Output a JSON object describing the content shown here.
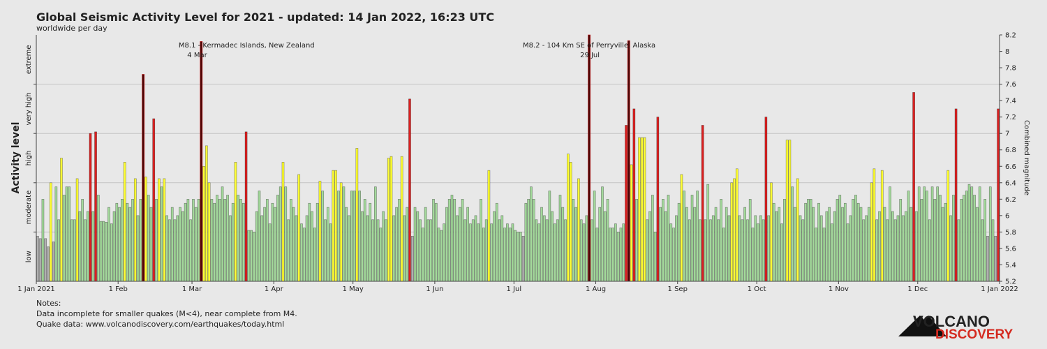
{
  "chart_data": {
    "type": "bar",
    "title": "Global Seismic Activity Level for 2021 - updated: 14 Jan 2022, 16:23 UTC",
    "subtitle": "worldwide per day",
    "y_label": "Activity level",
    "y2_label": "Combined magnitude",
    "value_axis_side": "right",
    "ylim": [
      5.2,
      8.2
    ],
    "yticks": [
      5.2,
      5.4,
      5.6,
      5.8,
      6,
      6.2,
      6.4,
      6.6,
      6.8,
      7,
      7.2,
      7.4,
      7.6,
      7.8,
      8,
      8.2
    ],
    "levels": [
      {
        "value": 5.5,
        "label": "low"
      },
      {
        "value": 6.1,
        "label": "moderate"
      },
      {
        "value": 6.7,
        "label": "high"
      },
      {
        "value": 7.3,
        "label": "very high"
      },
      {
        "value": 7.9,
        "label": "extreme"
      }
    ],
    "level_ticks": [
      5.8,
      6.4,
      7.0,
      7.6
    ],
    "grid": true,
    "xlim": [
      0,
      365
    ],
    "xticks": [
      {
        "value": 0,
        "label": "1 Jan 2021"
      },
      {
        "value": 31,
        "label": "1 Feb"
      },
      {
        "value": 59,
        "label": "1 Mar"
      },
      {
        "value": 90,
        "label": "1 Apr"
      },
      {
        "value": 120,
        "label": "1 May"
      },
      {
        "value": 151,
        "label": "1 Jun"
      },
      {
        "value": 181,
        "label": "1 Jul"
      },
      {
        "value": 212,
        "label": "1 Aug"
      },
      {
        "value": 243,
        "label": "1 Sep"
      },
      {
        "value": 273,
        "label": "1 Oct"
      },
      {
        "value": 304,
        "label": "1 Nov"
      },
      {
        "value": 334,
        "label": "1 Dec"
      },
      {
        "value": 365,
        "label": "1 Jan 2022"
      }
    ],
    "annotations": [
      {
        "text": "M8.1 - Kermadec Islands, New Zealand",
        "date": "4 Mar",
        "x": 62
      },
      {
        "text": "M8.2 - 104 Km SE of Perryville, Alaska",
        "date": "29 Jul",
        "x": 209
      }
    ],
    "values": [
      5.75,
      5.72,
      6.2,
      5.72,
      5.62,
      6.4,
      5.68,
      6.35,
      5.95,
      6.7,
      6.25,
      6.35,
      6.35,
      5.95,
      5.95,
      6.45,
      6.05,
      6.2,
      5.95,
      6.05,
      7.0,
      6.05,
      7.02,
      6.25,
      5.93,
      5.93,
      5.92,
      6.1,
      5.9,
      6.05,
      6.15,
      6.1,
      6.2,
      6.65,
      6.15,
      6.1,
      6.2,
      6.45,
      6.0,
      6.2,
      7.72,
      6.47,
      6.25,
      6.1,
      7.18,
      6.2,
      6.45,
      6.35,
      6.45,
      6.0,
      5.95,
      6.1,
      5.95,
      6.0,
      6.1,
      6.05,
      6.15,
      6.2,
      5.95,
      6.2,
      6.1,
      6.2,
      8.12,
      6.6,
      6.85,
      6.4,
      6.2,
      6.15,
      6.25,
      6.2,
      6.35,
      6.2,
      6.25,
      6.0,
      6.15,
      6.65,
      6.25,
      6.2,
      6.15,
      7.02,
      5.82,
      5.82,
      5.8,
      6.05,
      6.3,
      6.0,
      6.1,
      6.2,
      5.9,
      6.15,
      6.1,
      6.25,
      6.35,
      6.65,
      6.35,
      5.95,
      6.2,
      6.1,
      6.0,
      6.5,
      5.9,
      5.85,
      6.0,
      6.15,
      6.05,
      5.85,
      6.15,
      6.42,
      6.3,
      5.95,
      6.1,
      5.9,
      6.55,
      6.55,
      6.3,
      6.4,
      6.35,
      6.1,
      6.0,
      6.3,
      6.3,
      6.82,
      6.3,
      6.05,
      6.2,
      6.0,
      6.15,
      5.95,
      6.35,
      5.95,
      5.85,
      6.05,
      5.95,
      6.7,
      6.72,
      6.0,
      6.1,
      6.2,
      6.72,
      6.0,
      6.1,
      7.42,
      5.75,
      6.1,
      6.05,
      5.95,
      5.85,
      6.1,
      5.95,
      5.95,
      6.2,
      6.15,
      5.85,
      5.82,
      5.9,
      6.1,
      6.2,
      6.25,
      6.2,
      6.0,
      6.1,
      6.2,
      5.95,
      6.1,
      5.9,
      5.95,
      6.0,
      5.9,
      6.2,
      5.85,
      5.95,
      6.55,
      5.9,
      6.05,
      6.15,
      5.95,
      6.0,
      5.85,
      5.9,
      5.85,
      5.9,
      5.82,
      5.8,
      5.8,
      5.75,
      6.15,
      6.2,
      6.35,
      6.2,
      5.95,
      5.9,
      6.1,
      6.0,
      5.95,
      6.3,
      6.05,
      5.9,
      5.95,
      6.25,
      6.1,
      5.95,
      6.75,
      6.65,
      6.2,
      6.1,
      6.45,
      5.95,
      5.9,
      6.0,
      8.2,
      5.95,
      6.3,
      5.85,
      6.1,
      6.35,
      6.05,
      6.2,
      5.85,
      5.85,
      5.9,
      5.8,
      5.85,
      5.9,
      7.1,
      8.13,
      6.62,
      7.3,
      6.2,
      6.95,
      6.95,
      6.95,
      5.95,
      6.05,
      6.25,
      5.8,
      7.2,
      6.1,
      6.2,
      6.05,
      6.25,
      5.9,
      5.85,
      6.0,
      6.15,
      6.5,
      6.3,
      6.1,
      5.95,
      6.25,
      6.1,
      6.3,
      5.95,
      7.1,
      5.95,
      6.38,
      5.95,
      6.0,
      6.1,
      5.95,
      6.2,
      5.85,
      6.1,
      6.0,
      6.4,
      6.45,
      6.57,
      6.0,
      5.95,
      6.1,
      5.95,
      6.2,
      5.85,
      6.0,
      5.9,
      6.0,
      5.95,
      7.2,
      6.0,
      6.4,
      6.15,
      6.05,
      6.1,
      5.9,
      6.2,
      6.92,
      6.92,
      6.35,
      6.1,
      6.45,
      6.0,
      5.95,
      6.15,
      6.2,
      6.2,
      6.1,
      5.85,
      6.15,
      6.0,
      5.85,
      6.05,
      6.1,
      5.9,
      6.05,
      6.2,
      6.25,
      6.1,
      6.15,
      5.9,
      6.0,
      6.2,
      6.25,
      6.15,
      6.1,
      5.95,
      6.0,
      6.1,
      6.4,
      6.57,
      5.95,
      6.05,
      6.55,
      6.1,
      5.95,
      6.35,
      6.05,
      5.95,
      6.0,
      6.2,
      6.0,
      6.05,
      6.3,
      6.1,
      7.5,
      6.05,
      6.35,
      6.2,
      6.35,
      6.3,
      5.95,
      6.35,
      6.2,
      6.35,
      6.25,
      6.1,
      6.15,
      6.55,
      6.0,
      6.25,
      7.3,
      5.95,
      6.2,
      6.25,
      6.3,
      6.38,
      6.35,
      6.25,
      6.1,
      6.35,
      5.95,
      6.2,
      5.75,
      6.35,
      5.95,
      5.75,
      7.3
    ],
    "colors": [
      "#b0b0b0",
      "#b0b0b0",
      "#a3d99b",
      "#b0b0b0",
      "#b0b0b0",
      "#ffff33",
      "#b0b0b0",
      "#a3d99b",
      "#a3d99b",
      "#ffff33",
      "#a3d99b",
      "#a3d99b",
      "#a3d99b",
      "#a3d99b",
      "#a3d99b",
      "#ffff33",
      "#a3d99b",
      "#a3d99b",
      "#a3d99b",
      "#a3d99b",
      "#dd2020",
      "#a3d99b",
      "#dd2020",
      "#a3d99b",
      "#a3d99b",
      "#a3d99b",
      "#a3d99b",
      "#a3d99b",
      "#a3d99b",
      "#a3d99b",
      "#a3d99b",
      "#a3d99b",
      "#a3d99b",
      "#ffff33",
      "#a3d99b",
      "#a3d99b",
      "#a3d99b",
      "#ffff33",
      "#a3d99b",
      "#a3d99b",
      "#4a0606",
      "#ffff33",
      "#a3d99b",
      "#a3d99b",
      "#dd2020",
      "#a3d99b",
      "#ffff33",
      "#a3d99b",
      "#ffff33",
      "#a3d99b",
      "#a3d99b",
      "#a3d99b",
      "#a3d99b",
      "#a3d99b",
      "#a3d99b",
      "#a3d99b",
      "#a3d99b",
      "#a3d99b",
      "#a3d99b",
      "#a3d99b",
      "#a3d99b",
      "#a3d99b",
      "#4a0606",
      "#ffff33",
      "#ffff33",
      "#ffff33",
      "#a3d99b",
      "#a3d99b",
      "#a3d99b",
      "#a3d99b",
      "#a3d99b",
      "#a3d99b",
      "#a3d99b",
      "#a3d99b",
      "#a3d99b",
      "#ffff33",
      "#a3d99b",
      "#a3d99b",
      "#a3d99b",
      "#dd2020",
      "#a3d99b",
      "#a3d99b",
      "#a3d99b",
      "#a3d99b",
      "#a3d99b",
      "#a3d99b",
      "#a3d99b",
      "#a3d99b",
      "#a3d99b",
      "#a3d99b",
      "#a3d99b",
      "#a3d99b",
      "#a3d99b",
      "#ffff33",
      "#a3d99b",
      "#a3d99b",
      "#a3d99b",
      "#a3d99b",
      "#a3d99b",
      "#ffff33",
      "#a3d99b",
      "#a3d99b",
      "#a3d99b",
      "#a3d99b",
      "#a3d99b",
      "#a3d99b",
      "#a3d99b",
      "#ffff33",
      "#a3d99b",
      "#a3d99b",
      "#a3d99b",
      "#a3d99b",
      "#ffff33",
      "#ffff33",
      "#a3d99b",
      "#ffff33",
      "#a3d99b",
      "#a3d99b",
      "#a3d99b",
      "#a3d99b",
      "#a3d99b",
      "#ffff33",
      "#a3d99b",
      "#a3d99b",
      "#a3d99b",
      "#a3d99b",
      "#a3d99b",
      "#a3d99b",
      "#a3d99b",
      "#a3d99b",
      "#a3d99b",
      "#a3d99b",
      "#a3d99b",
      "#ffff33",
      "#ffff33",
      "#a3d99b",
      "#a3d99b",
      "#a3d99b",
      "#ffff33",
      "#a3d99b",
      "#a3d99b",
      "#dd2020",
      "#b0b0b0",
      "#a3d99b",
      "#a3d99b",
      "#a3d99b",
      "#a3d99b",
      "#a3d99b",
      "#a3d99b",
      "#a3d99b",
      "#a3d99b",
      "#a3d99b",
      "#a3d99b",
      "#a3d99b",
      "#a3d99b",
      "#a3d99b",
      "#a3d99b",
      "#a3d99b",
      "#a3d99b",
      "#a3d99b",
      "#a3d99b",
      "#a3d99b",
      "#a3d99b",
      "#a3d99b",
      "#a3d99b",
      "#a3d99b",
      "#a3d99b",
      "#a3d99b",
      "#a3d99b",
      "#a3d99b",
      "#a3d99b",
      "#ffff33",
      "#a3d99b",
      "#a3d99b",
      "#a3d99b",
      "#a3d99b",
      "#a3d99b",
      "#a3d99b",
      "#a3d99b",
      "#a3d99b",
      "#a3d99b",
      "#a3d99b",
      "#a3d99b",
      "#a3d99b",
      "#b0b0b0",
      "#a3d99b",
      "#a3d99b",
      "#a3d99b",
      "#a3d99b",
      "#a3d99b",
      "#a3d99b",
      "#a3d99b",
      "#a3d99b",
      "#a3d99b",
      "#a3d99b",
      "#a3d99b",
      "#a3d99b",
      "#a3d99b",
      "#a3d99b",
      "#a3d99b",
      "#a3d99b",
      "#ffff33",
      "#ffff33",
      "#a3d99b",
      "#a3d99b",
      "#ffff33",
      "#a3d99b",
      "#a3d99b",
      "#a3d99b",
      "#4a0606",
      "#a3d99b",
      "#a3d99b",
      "#a3d99b",
      "#a3d99b",
      "#a3d99b",
      "#a3d99b",
      "#a3d99b",
      "#a3d99b",
      "#a3d99b",
      "#a3d99b",
      "#a3d99b",
      "#a3d99b",
      "#a3d99b",
      "#dd2020",
      "#4a0606",
      "#ffff33",
      "#dd2020",
      "#a3d99b",
      "#ffff33",
      "#ffff33",
      "#ffff33",
      "#a3d99b",
      "#a3d99b",
      "#a3d99b",
      "#a3d99b",
      "#dd2020",
      "#a3d99b",
      "#a3d99b",
      "#a3d99b",
      "#a3d99b",
      "#a3d99b",
      "#a3d99b",
      "#a3d99b",
      "#a3d99b",
      "#ffff33",
      "#a3d99b",
      "#a3d99b",
      "#a3d99b",
      "#a3d99b",
      "#a3d99b",
      "#a3d99b",
      "#a3d99b",
      "#dd2020",
      "#a3d99b",
      "#a3d99b",
      "#a3d99b",
      "#a3d99b",
      "#a3d99b",
      "#a3d99b",
      "#a3d99b",
      "#a3d99b",
      "#a3d99b",
      "#a3d99b",
      "#ffff33",
      "#ffff33",
      "#ffff33",
      "#a3d99b",
      "#a3d99b",
      "#a3d99b",
      "#a3d99b",
      "#a3d99b",
      "#a3d99b",
      "#a3d99b",
      "#a3d99b",
      "#a3d99b",
      "#a3d99b",
      "#dd2020",
      "#a3d99b",
      "#ffff33",
      "#a3d99b",
      "#a3d99b",
      "#a3d99b",
      "#a3d99b",
      "#a3d99b",
      "#ffff33",
      "#ffff33",
      "#a3d99b",
      "#a3d99b",
      "#ffff33",
      "#a3d99b",
      "#a3d99b",
      "#a3d99b",
      "#a3d99b",
      "#a3d99b",
      "#a3d99b",
      "#a3d99b",
      "#a3d99b",
      "#a3d99b",
      "#a3d99b",
      "#a3d99b",
      "#a3d99b",
      "#a3d99b",
      "#a3d99b",
      "#a3d99b",
      "#a3d99b",
      "#a3d99b",
      "#a3d99b",
      "#a3d99b",
      "#a3d99b",
      "#a3d99b",
      "#a3d99b",
      "#a3d99b",
      "#a3d99b",
      "#a3d99b",
      "#a3d99b",
      "#a3d99b",
      "#ffff33",
      "#ffff33",
      "#a3d99b",
      "#a3d99b",
      "#ffff33",
      "#a3d99b",
      "#a3d99b",
      "#a3d99b",
      "#a3d99b",
      "#a3d99b",
      "#a3d99b",
      "#a3d99b",
      "#a3d99b",
      "#a3d99b",
      "#a3d99b",
      "#a3d99b",
      "#dd2020",
      "#a3d99b",
      "#a3d99b",
      "#a3d99b",
      "#a3d99b",
      "#a3d99b",
      "#a3d99b",
      "#a3d99b",
      "#a3d99b",
      "#a3d99b",
      "#a3d99b",
      "#a3d99b",
      "#a3d99b",
      "#ffff33",
      "#a3d99b",
      "#a3d99b",
      "#dd2020",
      "#a3d99b",
      "#a3d99b",
      "#a3d99b",
      "#a3d99b",
      "#a3d99b",
      "#a3d99b",
      "#a3d99b",
      "#a3d99b",
      "#a3d99b",
      "#a3d99b",
      "#a3d99b",
      "#b0b0b0",
      "#a3d99b",
      "#a3d99b",
      "#b0b0b0",
      "#dd2020"
    ]
  },
  "notes": {
    "heading": "Notes:",
    "lines": [
      "Data incomplete for smaller quakes (M<4), near complete from M4.",
      "Quake data: www.volcanodiscovery.com/earthquakes/today.html"
    ]
  },
  "logo": {
    "line1": "VOLCANO",
    "line2": "DISCOVERY"
  }
}
